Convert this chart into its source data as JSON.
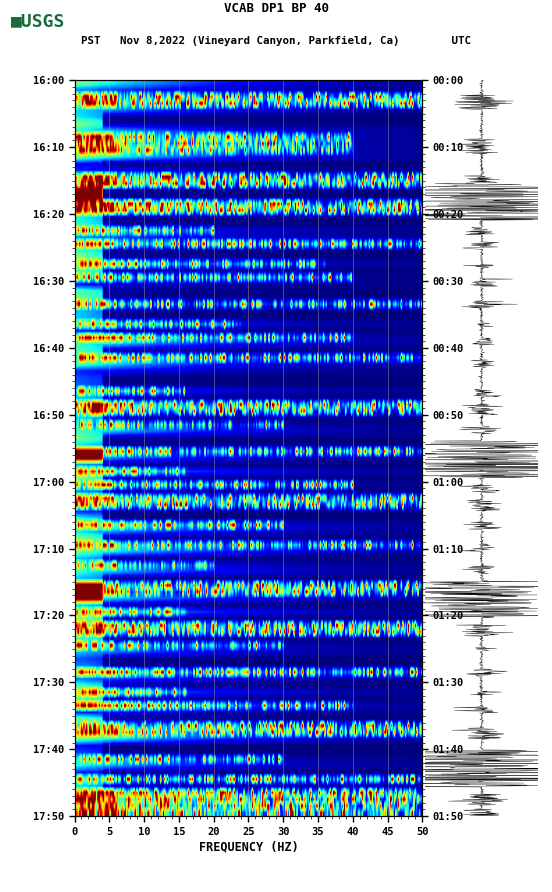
{
  "title_line1": "VCAB DP1 BP 40",
  "title_line2": "PST   Nov 8,2022 (Vineyard Canyon, Parkfield, Ca)        UTC",
  "xlabel": "FREQUENCY (HZ)",
  "freq_min": 0,
  "freq_max": 50,
  "freq_ticks": [
    0,
    5,
    10,
    15,
    20,
    25,
    30,
    35,
    40,
    45,
    50
  ],
  "pst_labels": [
    "16:00",
    "16:10",
    "16:20",
    "16:30",
    "16:40",
    "16:50",
    "17:00",
    "17:10",
    "17:20",
    "17:30",
    "17:40",
    "17:50"
  ],
  "utc_labels": [
    "00:00",
    "00:10",
    "00:20",
    "00:30",
    "00:40",
    "00:50",
    "01:00",
    "01:10",
    "01:20",
    "01:30",
    "01:40",
    "01:50"
  ],
  "vertical_grid_freqs": [
    5,
    10,
    15,
    20,
    25,
    30,
    35,
    40,
    45
  ],
  "background_color": "#ffffff",
  "colormap": "jet",
  "logo_color": "#1a6b3c",
  "figsize": [
    5.52,
    8.92
  ],
  "dpi": 100,
  "n_time": 110,
  "n_freq": 250
}
